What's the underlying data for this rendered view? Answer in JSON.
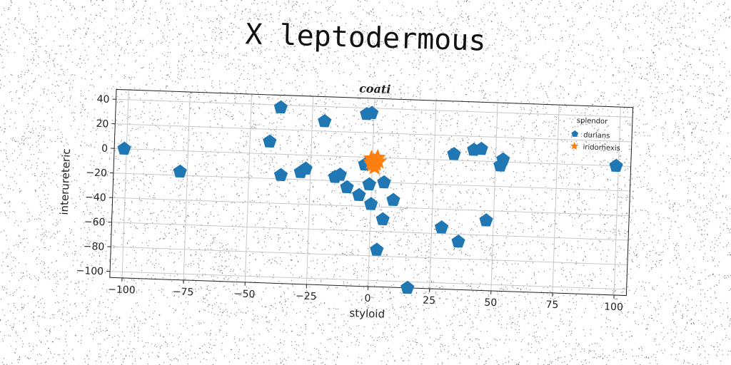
{
  "header": {
    "title": "X leptodermous"
  },
  "chart_data": {
    "type": "scatter",
    "title": "coati",
    "xlabel": "styloid",
    "ylabel": "interureteric",
    "xlim": [
      -105,
      105
    ],
    "ylim": [
      -105,
      48
    ],
    "xticks": [
      -100,
      -75,
      -50,
      -25,
      0,
      25,
      50,
      75,
      100
    ],
    "yticks": [
      -100,
      -80,
      -60,
      -40,
      -20,
      0,
      20,
      40
    ],
    "xtick_labels": [
      "−100",
      "−75",
      "−50",
      "−25",
      "0",
      "25",
      "50",
      "75",
      "100"
    ],
    "ytick_labels": [
      "−100",
      "−80",
      "−60",
      "−40",
      "−20",
      "0",
      "20",
      "40"
    ],
    "grid": true,
    "legend": {
      "title": "splendor",
      "position": "top-right"
    },
    "series": [
      {
        "name": "durians",
        "marker": "pentagon",
        "color": "#1f77b4",
        "points": [
          [
            -101,
            0
          ],
          [
            -78,
            -17
          ],
          [
            -38,
            38
          ],
          [
            -42,
            10
          ],
          [
            -37,
            -17
          ],
          [
            -29,
            -14
          ],
          [
            -27,
            -11
          ],
          [
            -20,
            28
          ],
          [
            -15,
            -17
          ],
          [
            -13,
            -15
          ],
          [
            -10,
            -25
          ],
          [
            -5,
            -31
          ],
          [
            -3,
            35
          ],
          [
            -1,
            36
          ],
          [
            -3,
            -6
          ],
          [
            -1,
            -22
          ],
          [
            0,
            -38
          ],
          [
            3,
            -75
          ],
          [
            5,
            -20
          ],
          [
            5,
            -50
          ],
          [
            9,
            -34
          ],
          [
            16,
            -105
          ],
          [
            29,
            -55
          ],
          [
            33,
            5
          ],
          [
            36,
            -66
          ],
          [
            41,
            9
          ],
          [
            44,
            10
          ],
          [
            47,
            -48
          ],
          [
            52,
            -3
          ],
          [
            53,
            2
          ],
          [
            99,
            0
          ]
        ]
      },
      {
        "name": "iridorhexis",
        "marker": "star",
        "color": "#ff7f0e",
        "points": [
          [
            -0.5,
            -1
          ],
          [
            0.5,
            -3
          ],
          [
            1.5,
            -5
          ],
          [
            2,
            0
          ],
          [
            0,
            -6
          ],
          [
            1,
            -8
          ],
          [
            2.5,
            -3
          ],
          [
            -0.5,
            -4
          ]
        ]
      }
    ]
  }
}
